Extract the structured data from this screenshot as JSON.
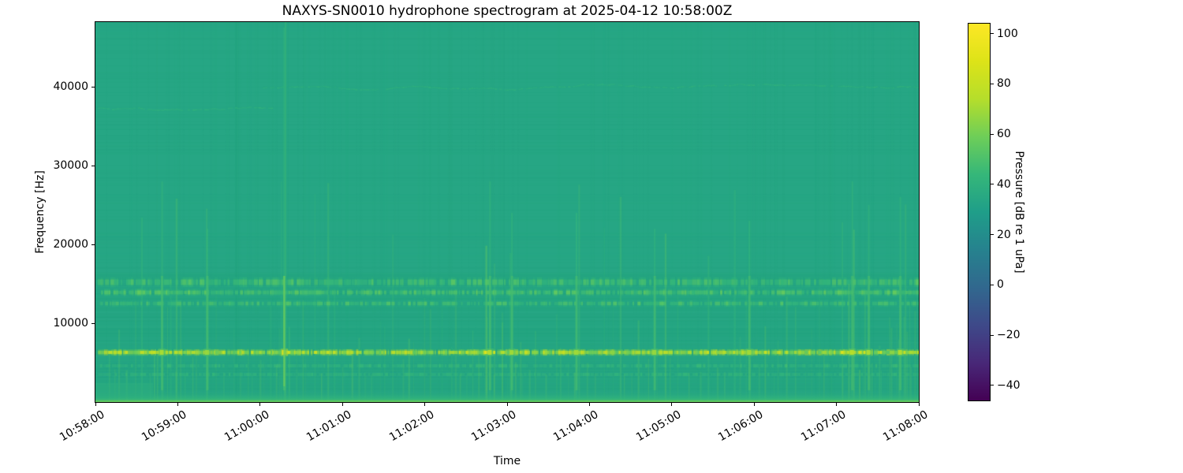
{
  "chart_data": {
    "type": "heatmap",
    "subtype": "spectrogram",
    "title": "NAXYS-SN0010 hydrophone spectrogram at 2025-04-12 10:58:00Z",
    "xlabel": "Time",
    "ylabel": "Frequency [Hz]",
    "start_time": "2025-04-12 10:58:00Z",
    "duration_s": 600,
    "freq_max_hz": 48200,
    "grid": false,
    "x_ticks": [
      "10:58:00",
      "10:59:00",
      "11:00:00",
      "11:01:00",
      "11:02:00",
      "11:03:00",
      "11:04:00",
      "11:05:00",
      "11:06:00",
      "11:07:00",
      "11:08:00"
    ],
    "y_ticks": [
      {
        "value": 10000,
        "label": "10000"
      },
      {
        "value": 20000,
        "label": "20000"
      },
      {
        "value": 30000,
        "label": "30000"
      },
      {
        "value": 40000,
        "label": "40000"
      }
    ],
    "background_db": 34,
    "colorbar": {
      "label": "Pressure [dB re 1 uPa]",
      "vmin": -46,
      "vmax": 104,
      "colormap": "viridis",
      "ticks": [
        {
          "value": 100,
          "label": "100"
        },
        {
          "value": 80,
          "label": "80"
        },
        {
          "value": 60,
          "label": "60"
        },
        {
          "value": 40,
          "label": "40"
        },
        {
          "value": 20,
          "label": "20"
        },
        {
          "value": 0,
          "label": "0"
        },
        {
          "value": -20,
          "label": "−20"
        },
        {
          "value": -40,
          "label": "−40"
        }
      ],
      "stops": [
        [
          0.0,
          "#440154"
        ],
        [
          0.1,
          "#482878"
        ],
        [
          0.2,
          "#3e4989"
        ],
        [
          0.3,
          "#31688e"
        ],
        [
          0.4,
          "#26828e"
        ],
        [
          0.5,
          "#1f9e89"
        ],
        [
          0.6,
          "#35b779"
        ],
        [
          0.7,
          "#6ece58"
        ],
        [
          0.8,
          "#b5de2b"
        ],
        [
          0.9,
          "#dde318"
        ],
        [
          1.0,
          "#fde725"
        ]
      ]
    },
    "features": {
      "tonal_tracks": [
        {
          "name": "tonal-37kHz",
          "freq_hz": 37300,
          "t_start_s": 0,
          "t_end_s": 128,
          "db": 41
        },
        {
          "name": "tonal-40kHz",
          "freq_hz": 39900,
          "t_start_s": 122,
          "t_end_s": 600,
          "db": 41
        }
      ],
      "dash_bands": [
        {
          "freq_hz": 6300,
          "db_base": 58,
          "db_peak": 86,
          "height_hz": 450,
          "density": 0.85
        },
        {
          "freq_hz": 15200,
          "db_base": 42,
          "db_peak": 54,
          "height_hz": 700,
          "density": 0.55
        },
        {
          "freq_hz": 13900,
          "db_base": 44,
          "db_peak": 58,
          "height_hz": 500,
          "density": 0.6
        },
        {
          "freq_hz": 12500,
          "db_base": 42,
          "db_peak": 54,
          "height_hz": 450,
          "density": 0.5
        },
        {
          "freq_hz": 4600,
          "db_base": 38,
          "db_peak": 46,
          "height_hz": 400,
          "density": 0.45
        },
        {
          "freq_hz": 3500,
          "db_base": 38,
          "db_peak": 44,
          "height_hz": 400,
          "density": 0.4
        }
      ],
      "impulse_train": {
        "mean_interval_s": 5.5,
        "max_freq_hz_typical": 16000,
        "db_range": [
          38,
          52
        ]
      },
      "busy_periods": [
        {
          "t0": 40,
          "t1": 62
        },
        {
          "t0": 115,
          "t1": 150
        },
        {
          "t0": 275,
          "t1": 310
        },
        {
          "t0": 540,
          "t1": 600
        }
      ],
      "strong_events": [
        {
          "t_s": 48,
          "db": 72,
          "top_hz": 28000
        },
        {
          "t_s": 81,
          "db": 68,
          "top_hz": 22000
        },
        {
          "t_s": 137,
          "db": 92,
          "top_hz": 47500
        },
        {
          "t_s": 287,
          "db": 74,
          "top_hz": 28000
        },
        {
          "t_s": 303,
          "db": 70,
          "top_hz": 24000
        },
        {
          "t_s": 350,
          "db": 70,
          "top_hz": 24000
        },
        {
          "t_s": 407,
          "db": 68,
          "top_hz": 22000
        },
        {
          "t_s": 476,
          "db": 70,
          "top_hz": 23000
        },
        {
          "t_s": 551,
          "db": 76,
          "top_hz": 28000
        },
        {
          "t_s": 563,
          "db": 72,
          "top_hz": 25000
        },
        {
          "t_s": 586,
          "db": 74,
          "top_hz": 26000
        }
      ],
      "low_band": {
        "freq_max_hz": 1500,
        "db_mid": 44,
        "db_bottom": 52
      },
      "low_left_patch": {
        "t_start_s": 0,
        "t_end_s": 42,
        "freq_min_hz": 600,
        "freq_max_hz": 2400,
        "db": 39
      }
    }
  }
}
